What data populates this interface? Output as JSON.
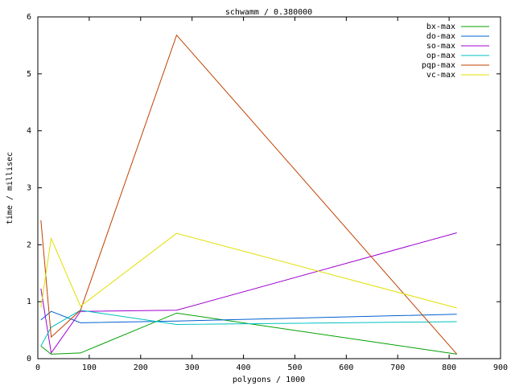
{
  "chart_data": {
    "type": "line",
    "title": "schwamm / 0.380000",
    "x_label": "polygons / 1000",
    "y_label": "time / millisec",
    "x": [
      6,
      26,
      83,
      270,
      815
    ],
    "series": [
      {
        "name": "bx-max",
        "color": "#00a000",
        "values": [
          0.22,
          0.08,
          0.1,
          0.8,
          0.08
        ]
      },
      {
        "name": "do-max",
        "color": "#0060d0",
        "values": [
          0.68,
          0.83,
          0.63,
          0.66,
          0.78
        ]
      },
      {
        "name": "so-max",
        "color": "#a000d0",
        "values": [
          1.23,
          0.1,
          0.83,
          0.85,
          2.21
        ]
      },
      {
        "name": "op-max",
        "color": "#00c0c0",
        "values": [
          0.22,
          0.55,
          0.85,
          0.6,
          0.65
        ]
      },
      {
        "name": "pqp-max",
        "color": "#c04000",
        "values": [
          2.43,
          0.38,
          0.85,
          5.68,
          0.08
        ]
      },
      {
        "name": "vc-max",
        "color": "#e0e000",
        "values": [
          0.9,
          2.11,
          0.92,
          2.2,
          0.89
        ]
      }
    ],
    "xlim": [
      0,
      900
    ],
    "xticks": [
      0,
      100,
      200,
      300,
      400,
      500,
      600,
      700,
      800,
      900
    ],
    "ylim": [
      0,
      6
    ],
    "yticks": [
      0,
      1,
      2,
      3,
      4,
      5,
      6
    ],
    "legend": "top-right"
  }
}
